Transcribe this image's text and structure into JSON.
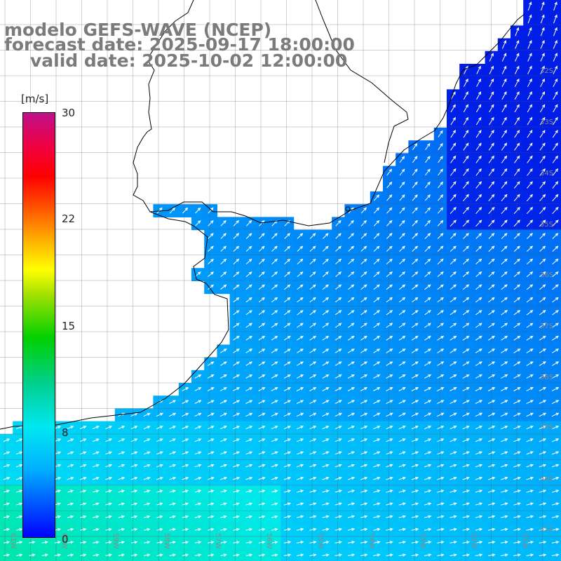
{
  "title": {
    "line1": "modelo GEFS-WAVE (NCEP)",
    "line2": "forecast date: 2025-09-17 18:00:00",
    "line3": "valid date: 2025-10-02 12:00:00"
  },
  "colorbar": {
    "unit": "[m/s]",
    "ticks": [
      "30",
      "22",
      "15",
      "8",
      "0"
    ],
    "tick_values": [
      30,
      22,
      15,
      8,
      0
    ],
    "min": 0,
    "max": 30
  },
  "map": {
    "lat_labels": [
      "32S",
      "33S",
      "34S",
      "35S",
      "36S",
      "37S",
      "38S",
      "39S",
      "40S",
      "41S"
    ],
    "lon_labels": [
      "61W",
      "60W",
      "59W",
      "58W",
      "57W",
      "56W",
      "55W",
      "54W",
      "53W",
      "52W",
      "51W"
    ],
    "colors": {
      "land": "#ffffff",
      "ocean_low": "#00e0f0",
      "ocean_mid": "#0090f0",
      "ocean_high": "#0040f0",
      "arrow": "#ffffff"
    }
  }
}
